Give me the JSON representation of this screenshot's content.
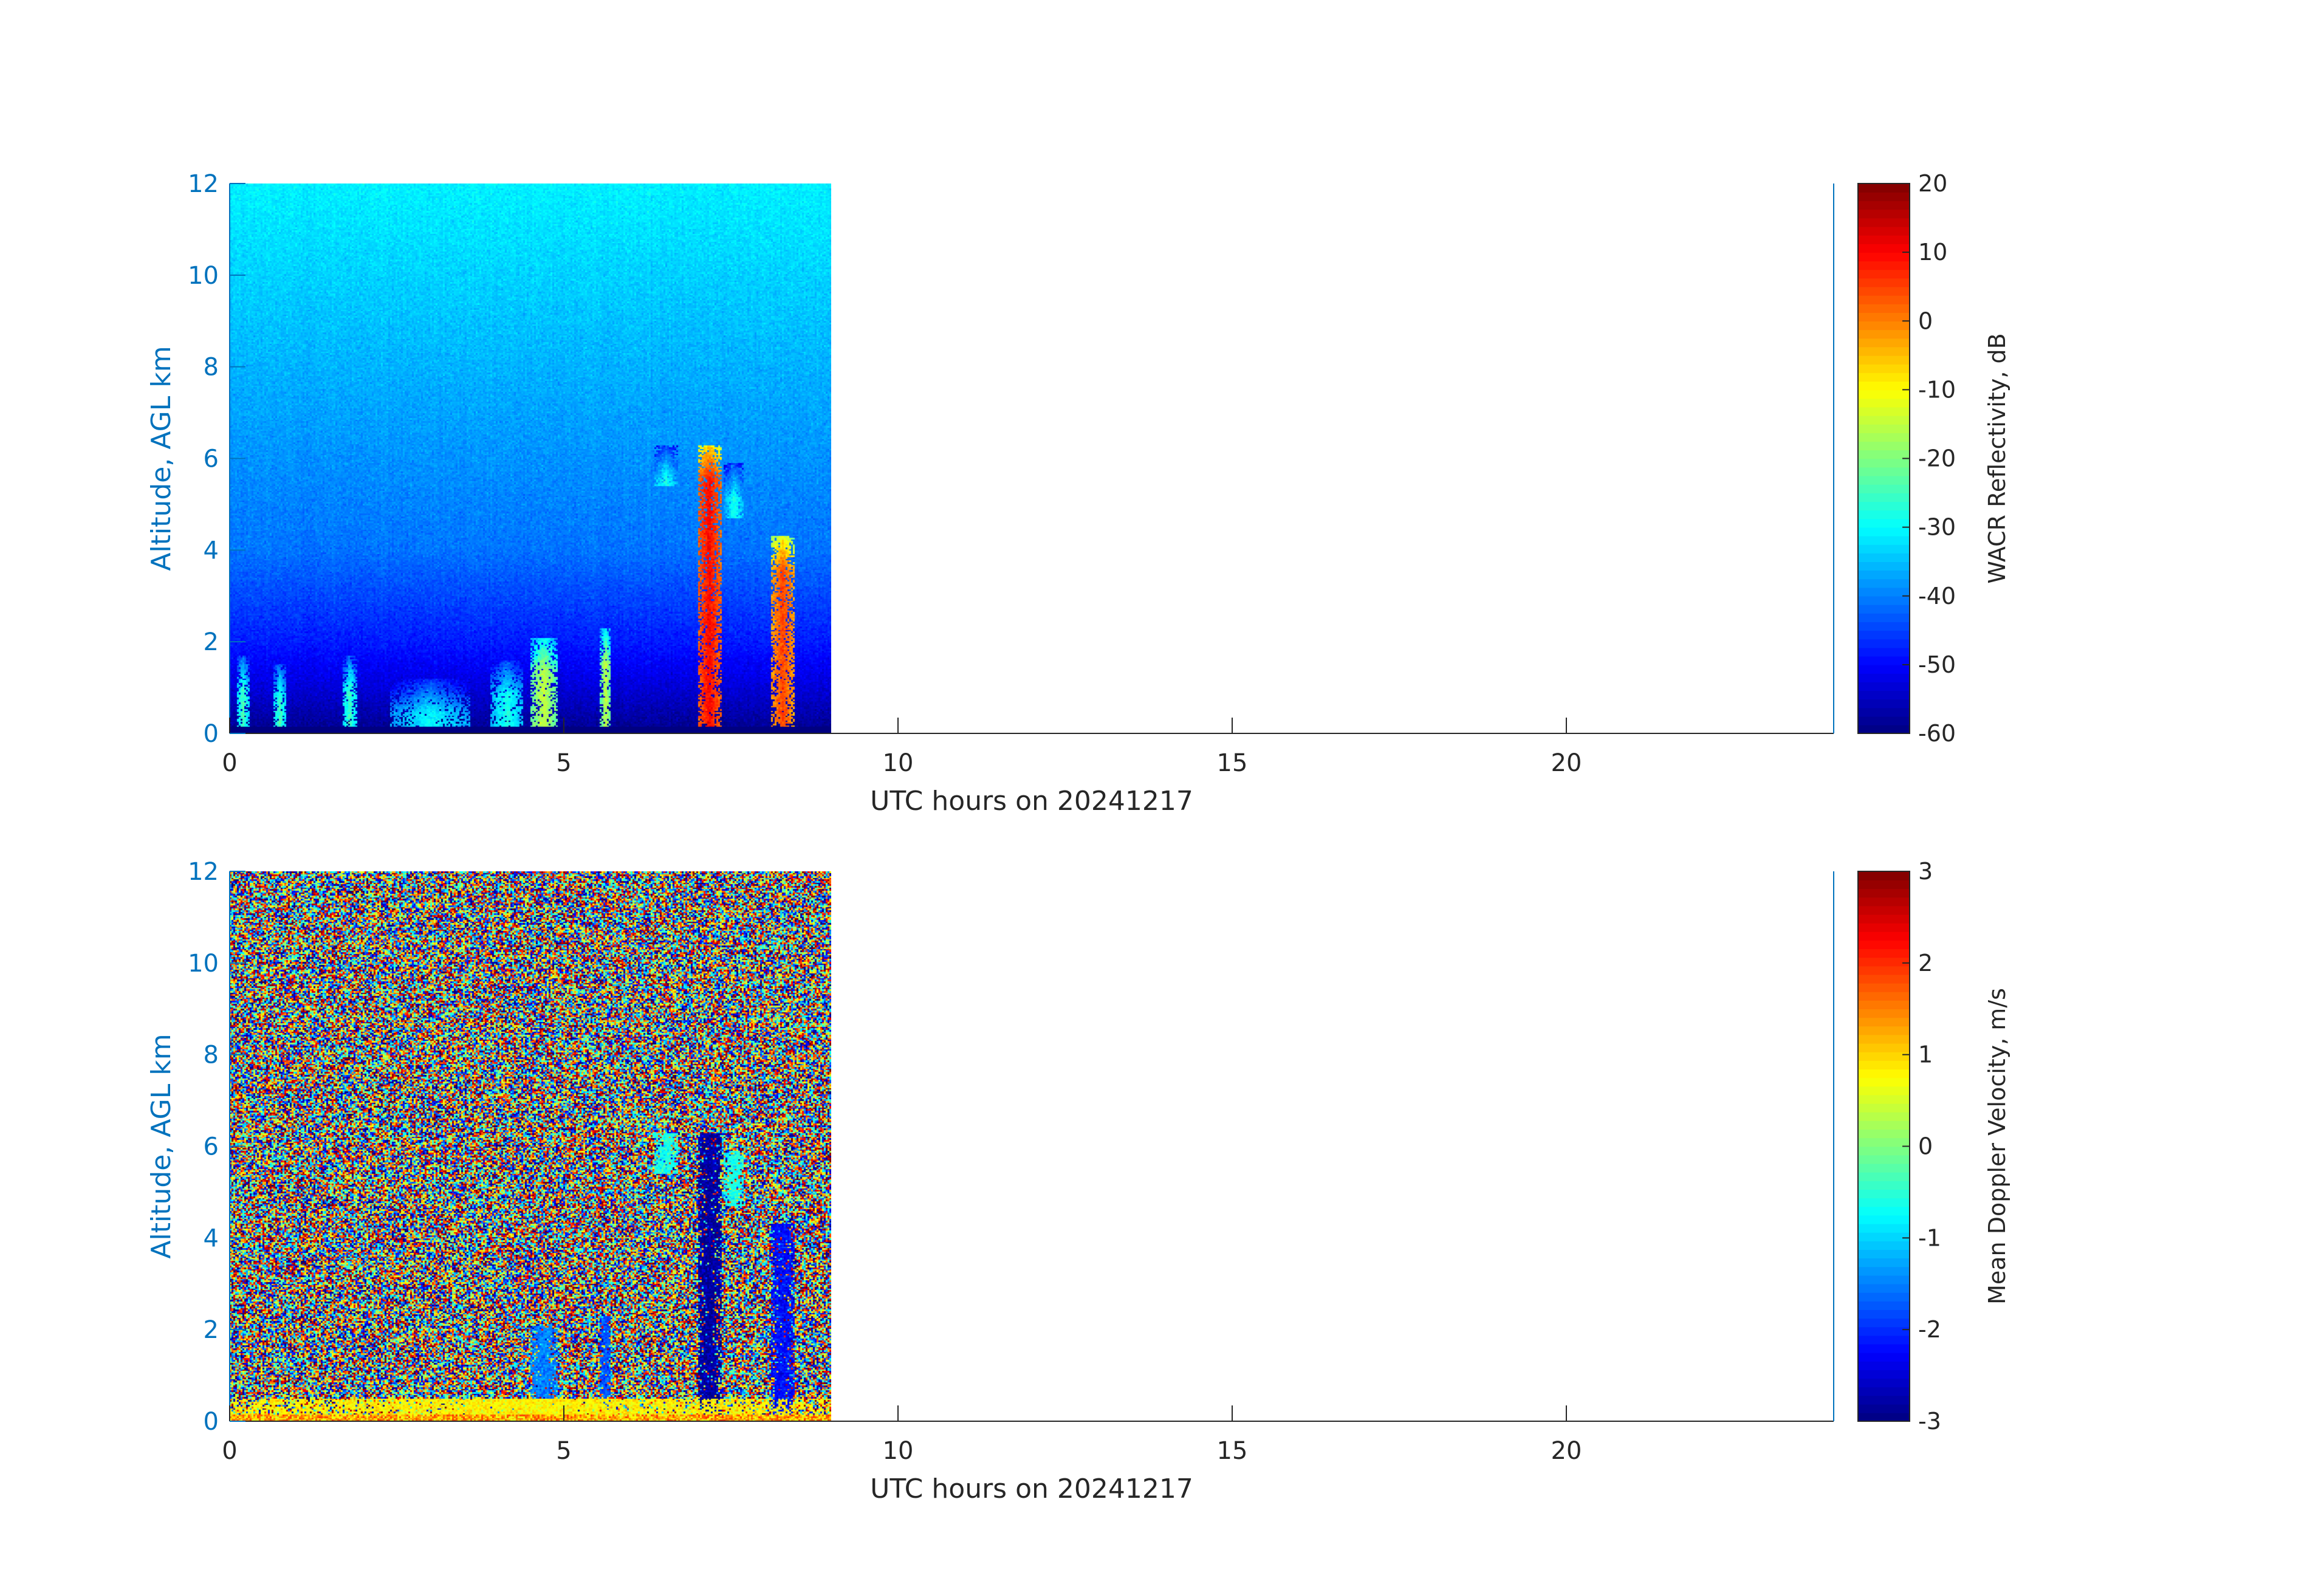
{
  "chart_data": [
    {
      "type": "heatmap",
      "xlabel": "UTC hours on 20241217",
      "ylabel": "Altitude, AGL km",
      "xlim": [
        0,
        24
      ],
      "ylim": [
        0,
        12
      ],
      "xticks": [
        0,
        5,
        10,
        15,
        20
      ],
      "yticks": [
        0,
        2,
        4,
        6,
        8,
        10,
        12
      ],
      "data_time_range_hours": [
        0,
        9
      ],
      "colormap": "jet",
      "colorbar": {
        "label": "WACR Reflectivity, dB",
        "range": [
          -60,
          20
        ],
        "ticks": [
          20,
          10,
          0,
          -10,
          -20,
          -30,
          -40,
          -50,
          -60
        ]
      },
      "background_gradient_dB": [
        {
          "altitude_km": 0.2,
          "value": -58
        },
        {
          "altitude_km": 1.0,
          "value": -53
        },
        {
          "altitude_km": 2.0,
          "value": -48
        },
        {
          "altitude_km": 4.0,
          "value": -41
        },
        {
          "altitude_km": 8.0,
          "value": -36
        },
        {
          "altitude_km": 12.0,
          "value": -31
        }
      ],
      "features": [
        {
          "t0": 7.0,
          "t1": 7.35,
          "z_top": 6.3,
          "value": 10
        },
        {
          "t0": 8.1,
          "t1": 8.45,
          "z_top": 4.3,
          "value": 5
        },
        {
          "t0": 4.5,
          "t1": 4.9,
          "z_top": 2.1,
          "value": -15
        },
        {
          "t0": 5.55,
          "t1": 5.7,
          "z_top": 2.3,
          "value": -15
        },
        {
          "t0": 6.35,
          "t1": 6.7,
          "z_top": 6.3,
          "z_bottom": 5.4,
          "value": -28
        },
        {
          "t0": 7.4,
          "t1": 7.7,
          "z_top": 5.9,
          "z_bottom": 4.7,
          "value": -28
        },
        {
          "t0": 0.1,
          "t1": 0.3,
          "z_top": 1.7,
          "value": -25
        },
        {
          "t0": 0.65,
          "t1": 0.85,
          "z_top": 1.5,
          "value": -25
        },
        {
          "t0": 1.7,
          "t1": 1.9,
          "z_top": 1.7,
          "value": -25
        },
        {
          "t0": 2.4,
          "t1": 3.6,
          "z_top": 1.2,
          "value": -30
        },
        {
          "t0": 3.9,
          "t1": 4.4,
          "z_top": 1.6,
          "value": -28
        }
      ]
    },
    {
      "type": "heatmap",
      "xlabel": "UTC hours on 20241217",
      "ylabel": "Altitude, AGL km",
      "xlim": [
        0,
        24
      ],
      "ylim": [
        0,
        12
      ],
      "xticks": [
        0,
        5,
        10,
        15,
        20
      ],
      "yticks": [
        0,
        2,
        4,
        6,
        8,
        10,
        12
      ],
      "data_time_range_hours": [
        0,
        9
      ],
      "colormap": "jet",
      "colorbar": {
        "label": "Mean Doppler Velocity, m/s",
        "range": [
          -3,
          3
        ],
        "ticks": [
          3,
          2,
          1,
          0,
          -1,
          -2,
          -3
        ]
      },
      "features": [
        {
          "t0": 7.0,
          "t1": 7.35,
          "z_top": 6.3,
          "value": -2.8
        },
        {
          "t0": 8.1,
          "t1": 8.45,
          "z_top": 4.3,
          "value": -2.2
        },
        {
          "t0": 4.5,
          "t1": 4.9,
          "z_top": 2.1,
          "value": -1.5
        },
        {
          "t0": 5.55,
          "t1": 5.7,
          "z_top": 2.3,
          "value": -1.8
        },
        {
          "t0": 6.35,
          "t1": 6.7,
          "z_top": 6.3,
          "z_bottom": 5.4,
          "value": -0.6
        },
        {
          "t0": 7.4,
          "t1": 7.7,
          "z_top": 5.9,
          "z_bottom": 4.7,
          "value": -0.6
        },
        {
          "t0": 0.0,
          "t1": 9.0,
          "z_top": 0.5,
          "value": 0.8
        }
      ]
    }
  ]
}
